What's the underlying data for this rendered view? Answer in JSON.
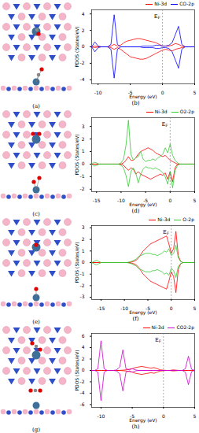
{
  "chart_data": [
    {
      "type": "line",
      "structure_label": "(a)",
      "panel_label": "(b)",
      "x_label": "Energy (eV)",
      "y_label": "PDOS (States/eV)",
      "xlim": [
        -11,
        5
      ],
      "xticks": [
        -10,
        -5,
        0,
        5
      ],
      "ylim": [
        -4.5,
        4.5
      ],
      "yticks": [
        -4,
        -2,
        0,
        2,
        4
      ],
      "grid": false,
      "legend": "top-right",
      "annotations": [
        {
          "text": "E",
          "subscript": "F",
          "x": 0
        }
      ],
      "x": [
        -11,
        -10.5,
        -10,
        -9.5,
        -9,
        -8.5,
        -8,
        -7.5,
        -7,
        -6.5,
        -6,
        -5.5,
        -5,
        -4.5,
        -4,
        -3.5,
        -3,
        -2.5,
        -2,
        -1.5,
        -1,
        -0.5,
        0,
        0.5,
        1,
        1.5,
        2,
        2.5,
        3,
        3.5,
        4,
        4.5,
        5
      ],
      "series": [
        {
          "name": "Ni-3d",
          "color": "#ff0000",
          "values": [
            0,
            0.1,
            0,
            0,
            0,
            0,
            0.1,
            0.3,
            0.1,
            0.2,
            0.5,
            0.7,
            0.8,
            0.9,
            1.0,
            1.0,
            0.9,
            0.8,
            0.7,
            0.6,
            0.5,
            0.3,
            0.1,
            0.1,
            0.1,
            0.2,
            0.4,
            0.3,
            0.1,
            0,
            0,
            0,
            0
          ],
          "values_down": [
            0,
            -0.1,
            0,
            0,
            0,
            0,
            -0.1,
            -0.3,
            -0.1,
            -0.3,
            -0.6,
            -0.9,
            -1.2,
            -1.3,
            -1.4,
            -1.5,
            -1.5,
            -1.4,
            -1.2,
            -1.0,
            -0.8,
            -0.6,
            -0.4,
            -0.3,
            -0.4,
            -0.5,
            -0.3,
            -0.2,
            -0.1,
            0,
            0,
            0,
            0
          ]
        },
        {
          "name": "CO-2p",
          "color": "#0000ff",
          "values": [
            0,
            0.6,
            0.1,
            0,
            0,
            0,
            0.3,
            3.9,
            0.3,
            0,
            0,
            0,
            0,
            0,
            0,
            0,
            0.1,
            0.1,
            0.1,
            0.1,
            0.2,
            0.2,
            0.1,
            0.1,
            0.2,
            0.5,
            1.5,
            2.5,
            0.3,
            0,
            0,
            0,
            0
          ],
          "values_down": [
            0,
            -0.6,
            -0.1,
            0,
            0,
            0,
            -0.3,
            -3.8,
            -0.3,
            0,
            0,
            0,
            0,
            0,
            0,
            0,
            -0.1,
            -0.1,
            -0.1,
            -0.1,
            -0.2,
            -0.2,
            -0.1,
            -0.1,
            -0.2,
            -0.6,
            -1.6,
            -2.6,
            -0.3,
            0,
            0,
            0,
            0
          ]
        }
      ]
    },
    {
      "type": "line",
      "structure_label": "(c)",
      "panel_label": "(d)",
      "x_label": "Energy (eV)",
      "y_label": "PDOS (States/eV)",
      "xlim": [
        -16,
        5
      ],
      "xticks": [
        -15,
        -10,
        -5,
        0,
        5
      ],
      "ylim": [
        -2.2,
        3.7
      ],
      "yticks": [
        -2,
        -1,
        0,
        1,
        2,
        3
      ],
      "grid": false,
      "legend": "top-right",
      "annotations": [
        {
          "text": "E",
          "subscript": "F",
          "x": 0
        }
      ],
      "x": [
        -16,
        -15.5,
        -15,
        -14.5,
        -14,
        -13.5,
        -13,
        -12.5,
        -12,
        -11.5,
        -11,
        -10.5,
        -10,
        -9.5,
        -9,
        -8.5,
        -8,
        -7.5,
        -7,
        -6.5,
        -6,
        -5.5,
        -5,
        -4.5,
        -4,
        -3.5,
        -3,
        -2.5,
        -2,
        -1.5,
        -1,
        -0.5,
        0,
        0.5,
        1,
        1.5,
        2,
        2.5,
        3,
        3.5,
        4,
        4.5,
        5
      ],
      "series": [
        {
          "name": "Ni-3d",
          "color": "#ff0000",
          "values": [
            0,
            0,
            0,
            0,
            0,
            0,
            0,
            0,
            0,
            0,
            0,
            0,
            0,
            0.1,
            0.3,
            0.6,
            0.3,
            0.3,
            0.5,
            0.8,
            1.0,
            1.1,
            1.2,
            1.3,
            1.2,
            1.1,
            0.9,
            0.8,
            0.7,
            0.6,
            0.7,
            0.5,
            0.3,
            0.2,
            0.1,
            0,
            0,
            0,
            0,
            0,
            0,
            0,
            0
          ],
          "values_down": [
            0,
            0,
            0,
            0,
            0,
            0,
            0,
            0,
            0,
            0,
            0,
            0,
            0,
            -0.1,
            -0.3,
            -0.5,
            -0.3,
            -0.4,
            -0.8,
            -0.6,
            -0.8,
            -0.9,
            -1.0,
            -1.1,
            -1.2,
            -1.1,
            -1.0,
            -0.9,
            -0.8,
            -0.9,
            -0.7,
            -1.2,
            -0.6,
            -1.4,
            -0.3,
            0,
            0,
            0,
            0,
            0,
            0,
            0,
            0
          ]
        },
        {
          "name": "O2-2p",
          "color": "#33cc33",
          "values": [
            0,
            0.15,
            0.1,
            0,
            0,
            0,
            0,
            0,
            0,
            0,
            0,
            0,
            0.1,
            0.4,
            1.5,
            3.5,
            0.8,
            0.3,
            0.5,
            0.6,
            1.0,
            0.4,
            0.2,
            0.3,
            0.3,
            0.4,
            0.3,
            0.5,
            0.6,
            0.8,
            1.3,
            0.9,
            1.6,
            0.7,
            0.3,
            0.1,
            0,
            0,
            0,
            0,
            0,
            0,
            0
          ],
          "values_down": [
            0,
            -0.15,
            -0.1,
            0,
            0,
            0,
            0,
            0,
            0,
            0,
            0,
            0,
            -0.1,
            -0.3,
            -0.9,
            -1.8,
            -0.6,
            -0.3,
            -0.7,
            -1.5,
            -0.8,
            -0.4,
            -0.2,
            -0.3,
            -0.3,
            -0.4,
            -0.3,
            -0.4,
            -0.5,
            -0.7,
            -1.0,
            -1.6,
            -0.6,
            -1.9,
            -0.5,
            -0.1,
            0,
            0,
            0,
            0,
            0,
            0,
            0
          ]
        }
      ]
    },
    {
      "type": "line",
      "structure_label": "(e)",
      "panel_label": "(f)",
      "x_label": "Energy (eV)",
      "y_label": "PDOS (States/eV)",
      "xlim": [
        -17,
        5
      ],
      "xticks": [
        -15,
        -10,
        -5,
        0,
        5
      ],
      "ylim": [
        -3.2,
        3.2
      ],
      "yticks": [
        -3,
        -2,
        -1,
        0,
        1,
        2,
        3
      ],
      "grid": false,
      "legend": "top-right",
      "annotations": [
        {
          "text": "E",
          "subscript": "F",
          "x": 0
        }
      ],
      "x": [
        -17,
        -16.5,
        -16,
        -15.5,
        -15,
        -14.5,
        -14,
        -13.5,
        -13,
        -12.5,
        -12,
        -11.5,
        -11,
        -10.5,
        -10,
        -9.5,
        -9,
        -8.5,
        -8,
        -7.5,
        -7,
        -6.5,
        -6,
        -5.5,
        -5,
        -4.5,
        -4,
        -3.5,
        -3,
        -2.5,
        -2,
        -1.5,
        -1,
        -0.5,
        0,
        0.5,
        1,
        1.5,
        2,
        2.5,
        3,
        3.5,
        4,
        4.5,
        5
      ],
      "series": [
        {
          "name": "Ni-3d",
          "color": "#ff0000",
          "values": [
            0,
            0,
            0,
            0,
            0,
            0,
            0,
            0,
            0,
            0,
            0,
            0,
            0,
            0,
            0,
            0,
            0,
            0.05,
            0.1,
            0.2,
            0.4,
            0.7,
            1.0,
            1.2,
            1.4,
            1.6,
            1.7,
            1.8,
            1.9,
            2.0,
            2.1,
            2.2,
            2.3,
            1.6,
            0.8,
            1.2,
            2.7,
            0.6,
            0.1,
            0,
            0,
            0,
            0,
            0,
            0
          ],
          "values_down": [
            0,
            0,
            0,
            0,
            0,
            0,
            0,
            0,
            0,
            0,
            0,
            0,
            0,
            0,
            0,
            0,
            0,
            -0.05,
            -0.1,
            -0.2,
            -0.4,
            -0.7,
            -1.0,
            -1.2,
            -1.4,
            -1.6,
            -1.7,
            -1.8,
            -1.9,
            -2.0,
            -2.1,
            -2.2,
            -2.3,
            -1.6,
            -0.8,
            -1.2,
            -2.6,
            -0.6,
            -0.1,
            0,
            0,
            0,
            0,
            0,
            0
          ]
        },
        {
          "name": "O-2p",
          "color": "#33cc33",
          "values": [
            0,
            0.1,
            0.2,
            0.1,
            0,
            0,
            0,
            0,
            0,
            0,
            0,
            0,
            0,
            0,
            0,
            0,
            0.05,
            0.1,
            0.2,
            0.3,
            0.5,
            0.6,
            0.7,
            0.8,
            0.8,
            0.8,
            0.7,
            0.7,
            0.6,
            0.7,
            0.8,
            1.0,
            0.9,
            1.2,
            0.6,
            0.8,
            1.5,
            0.4,
            0.1,
            0,
            0,
            0,
            0,
            0,
            0
          ],
          "values_down": [
            0,
            -0.1,
            -0.2,
            -0.1,
            0,
            0,
            0,
            0,
            0,
            0,
            0,
            0,
            0,
            0,
            0,
            0,
            -0.05,
            -0.1,
            -0.2,
            -0.3,
            -0.5,
            -0.6,
            -0.7,
            -0.8,
            -0.8,
            -0.8,
            -0.7,
            -0.7,
            -0.6,
            -0.7,
            -0.8,
            -1.0,
            -0.9,
            -1.1,
            -0.5,
            -0.7,
            -1.3,
            -0.3,
            -0.1,
            0,
            0,
            0,
            0,
            0,
            0
          ]
        }
      ]
    },
    {
      "type": "line",
      "structure_label": "(g)",
      "panel_label": "(h)",
      "x_label": "Energy (eV)",
      "y_label": "PDOS (States/eV)",
      "xlim": [
        -11.5,
        5
      ],
      "xticks": [
        -10,
        -5,
        0,
        5
      ],
      "ylim": [
        -6.5,
        6.5
      ],
      "yticks": [
        -6,
        -4,
        -2,
        0,
        2,
        4,
        6
      ],
      "grid": false,
      "legend": "top-right",
      "annotations": [
        {
          "text": "E",
          "subscript": "F",
          "x": 0
        }
      ],
      "x": [
        -11.5,
        -11,
        -10.5,
        -10,
        -9.5,
        -9,
        -8.5,
        -8,
        -7.5,
        -7,
        -6.5,
        -6,
        -5.5,
        -5,
        -4.5,
        -4,
        -3.5,
        -3,
        -2.5,
        -2,
        -1.5,
        -1,
        -0.5,
        0,
        0.5,
        1,
        1.5,
        2,
        2.5,
        3,
        3.5,
        4,
        4.5,
        5
      ],
      "series": [
        {
          "name": "Ni-3d",
          "color": "#ff0000",
          "values": [
            0,
            0,
            0,
            0,
            0,
            0,
            0,
            0,
            0,
            0,
            0.05,
            0.1,
            0.2,
            0.3,
            0.5,
            0.6,
            0.7,
            0.6,
            0.5,
            0.4,
            0.5,
            0.3,
            0.1,
            0.05,
            0,
            0,
            0.1,
            0.05,
            0,
            0,
            0,
            0,
            0,
            0
          ],
          "values_down": [
            0,
            0,
            0,
            0,
            0,
            0,
            0,
            0,
            0,
            0,
            -0.05,
            -0.1,
            -0.2,
            -0.3,
            -0.5,
            -0.6,
            -0.7,
            -0.6,
            -0.5,
            -0.4,
            -0.5,
            -0.3,
            -0.1,
            -0.05,
            0,
            0,
            -0.1,
            -0.05,
            0,
            0,
            0,
            0,
            0,
            0
          ]
        },
        {
          "name": "CO2-2p",
          "color": "#cc00cc",
          "values": [
            0,
            0,
            0.3,
            5.2,
            0.3,
            0,
            0,
            0,
            0.1,
            0.6,
            3.6,
            0.3,
            0.1,
            0.3,
            0.1,
            0,
            0,
            0,
            0,
            0,
            0,
            0,
            0,
            0,
            0,
            0,
            0,
            0,
            0,
            0,
            0.3,
            2.5,
            0.2,
            0
          ],
          "values_down": [
            0,
            0,
            -0.3,
            -5.3,
            -0.3,
            0,
            0,
            0,
            -0.1,
            -0.6,
            -3.6,
            -0.3,
            -0.1,
            -0.3,
            -0.1,
            0,
            0,
            0,
            0,
            0,
            0,
            0,
            0,
            0,
            0,
            0,
            0,
            0,
            0,
            0,
            -0.3,
            -2.5,
            -0.2,
            0
          ]
        }
      ]
    }
  ]
}
